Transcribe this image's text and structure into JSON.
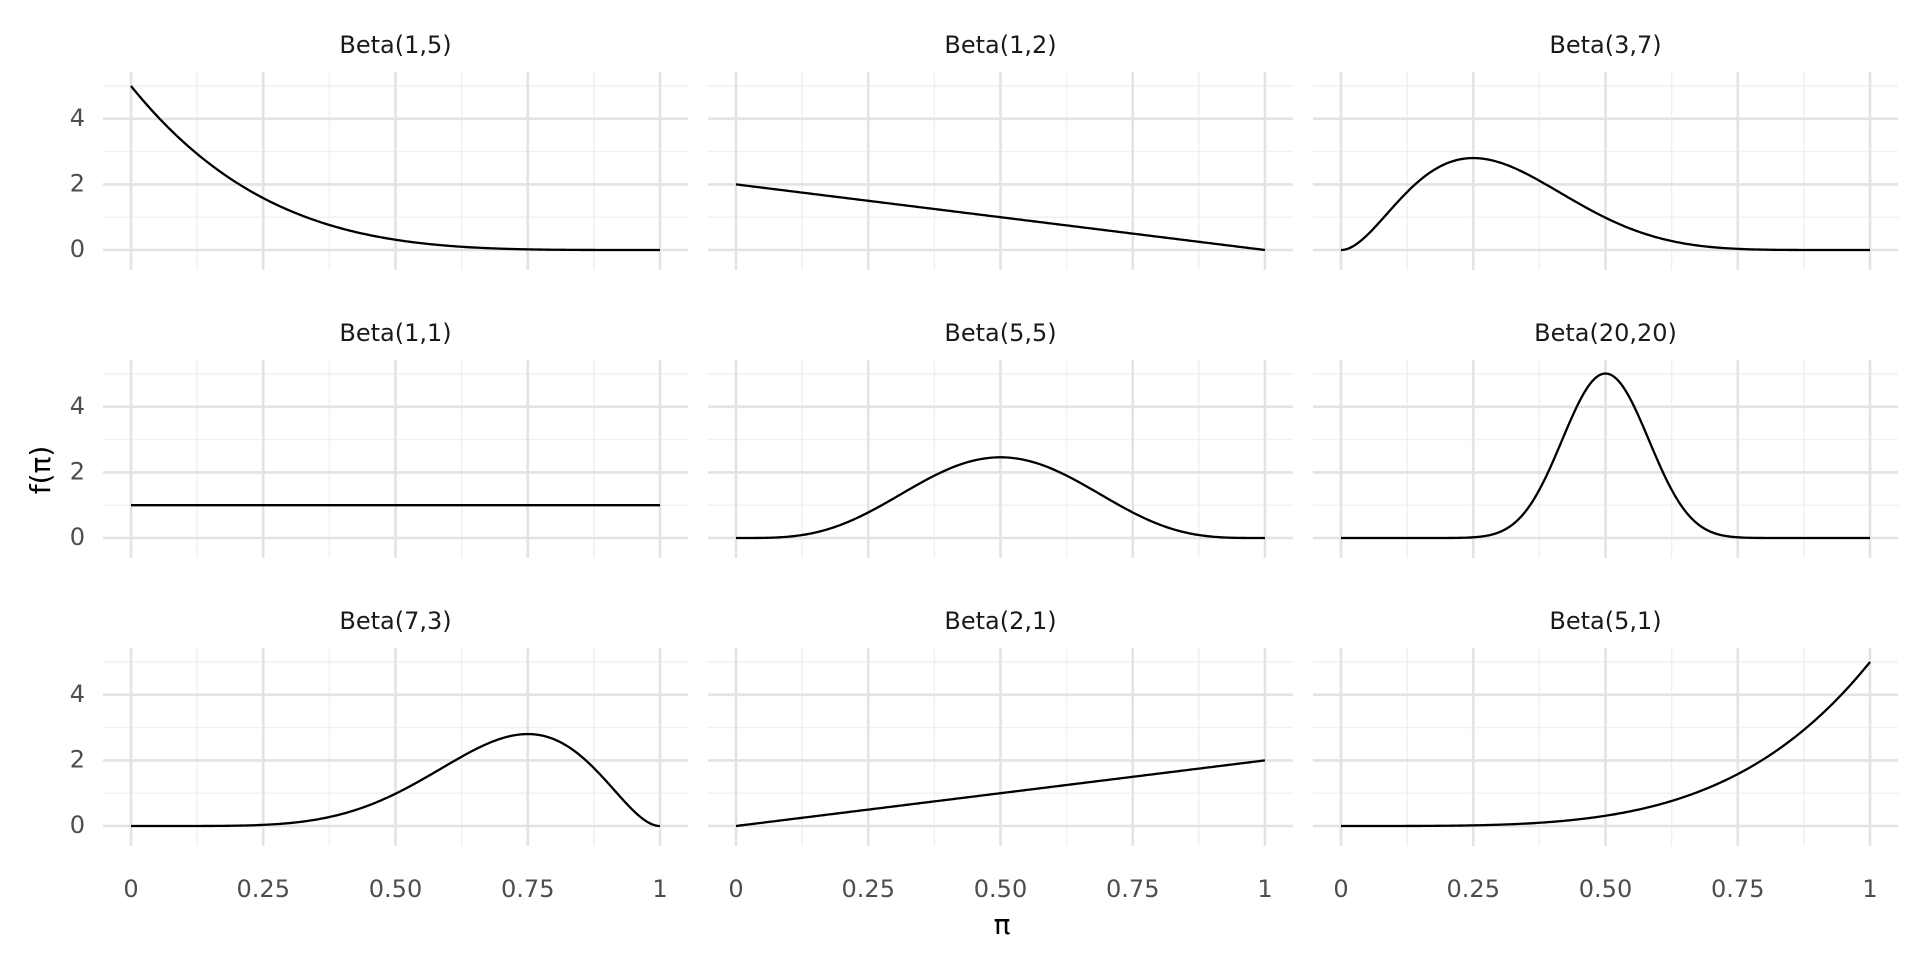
{
  "chart_data": {
    "type": "line",
    "layout": "facet-grid",
    "facet_rows": 3,
    "facet_cols": 3,
    "xlabel": "π",
    "ylabel": "f(π)",
    "xlim": [
      0,
      1
    ],
    "ylim": [
      0,
      5
    ],
    "x_ticks": [
      0,
      0.25,
      0.5,
      0.75,
      1
    ],
    "x_tick_labels": [
      "0",
      "0.25",
      "0.50",
      "0.75",
      "1"
    ],
    "y_ticks": [
      0,
      2,
      4
    ],
    "y_tick_labels": [
      "0",
      "2",
      "4"
    ],
    "grid": true,
    "line_color": "#000000",
    "panels": [
      {
        "title": "Beta(1,5)",
        "alpha": 1,
        "beta": 5
      },
      {
        "title": "Beta(1,2)",
        "alpha": 1,
        "beta": 2
      },
      {
        "title": "Beta(3,7)",
        "alpha": 3,
        "beta": 7
      },
      {
        "title": "Beta(1,1)",
        "alpha": 1,
        "beta": 1
      },
      {
        "title": "Beta(5,5)",
        "alpha": 5,
        "beta": 5
      },
      {
        "title": "Beta(20,20)",
        "alpha": 20,
        "beta": 20
      },
      {
        "title": "Beta(7,3)",
        "alpha": 7,
        "beta": 3
      },
      {
        "title": "Beta(2,1)",
        "alpha": 2,
        "beta": 1
      },
      {
        "title": "Beta(5,1)",
        "alpha": 5,
        "beta": 1
      }
    ]
  }
}
